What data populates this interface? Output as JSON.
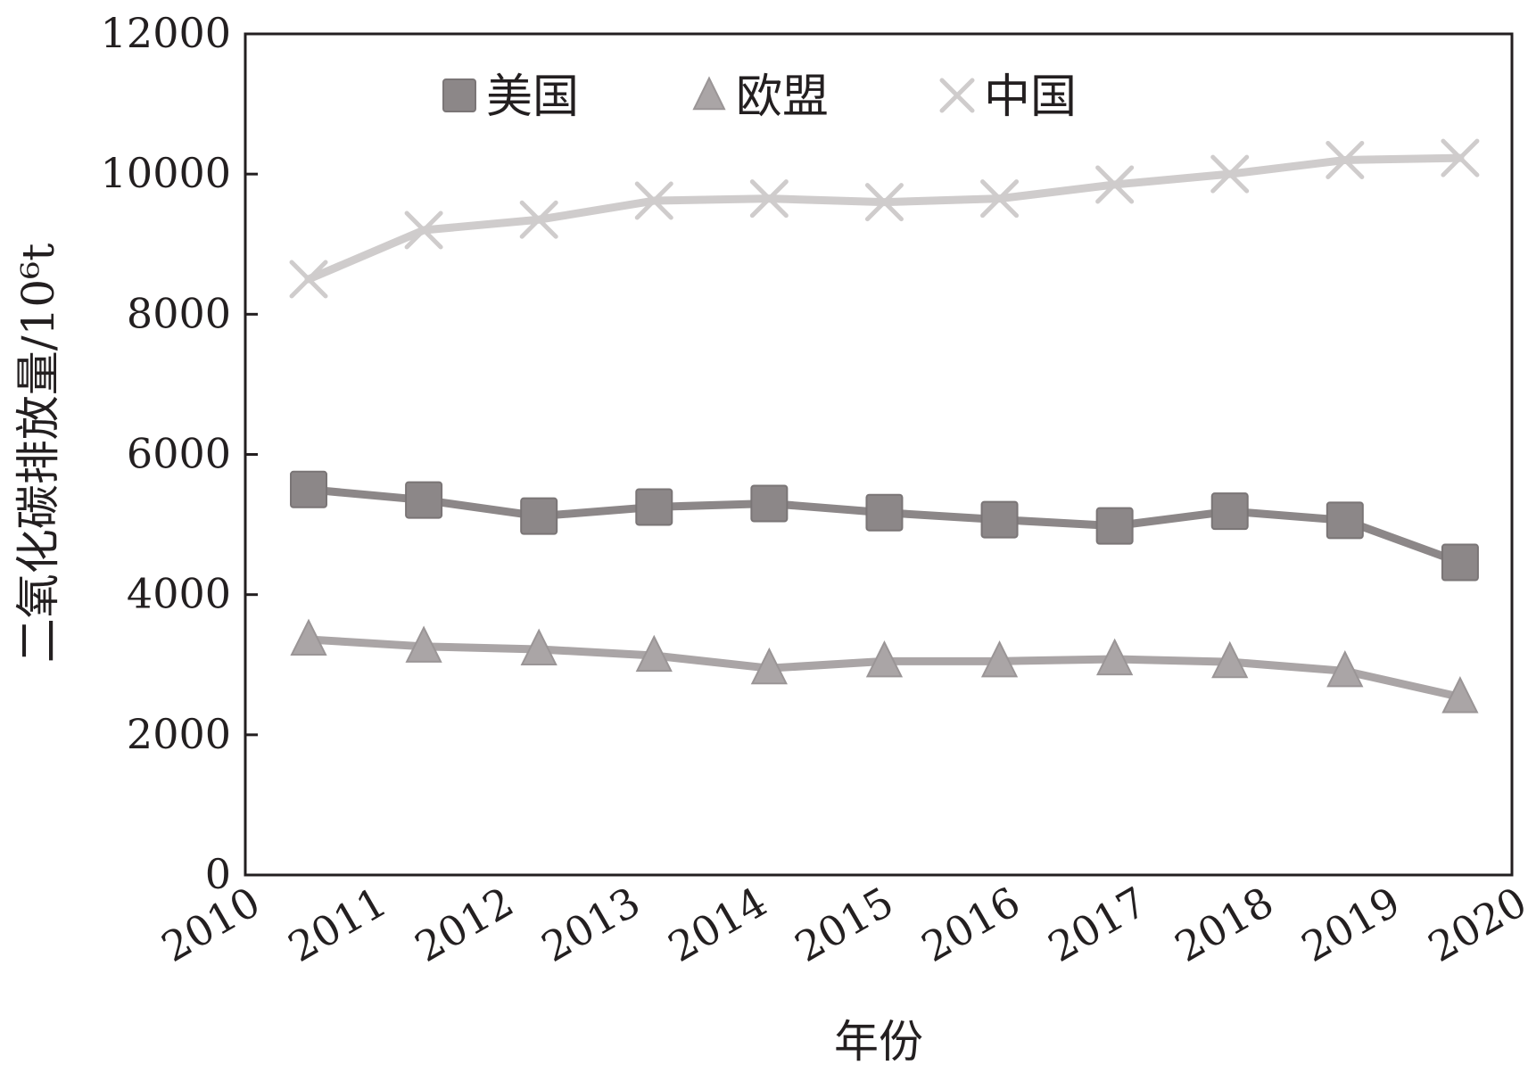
{
  "chart_data": {
    "type": "line",
    "xlabel": "年份",
    "ylabel": "二氧化碳排放量/10⁶t",
    "x_ticks": [
      "2010",
      "2011",
      "2012",
      "2013",
      "2014",
      "2015",
      "2016",
      "2017",
      "2018",
      "2019",
      "2020"
    ],
    "y_ticks": [
      "0",
      "2000",
      "4000",
      "6000",
      "8000",
      "10000",
      "12000"
    ],
    "ylim": [
      0,
      12000
    ],
    "grid": false,
    "legend_position": "top",
    "categories": [
      "2010",
      "2011",
      "2012",
      "2013",
      "2014",
      "2015",
      "2016",
      "2017",
      "2018",
      "2019",
      "2020"
    ],
    "series": [
      {
        "name": "美国",
        "marker": "square",
        "color": "#8c8788",
        "values": [
          5500,
          5350,
          5120,
          5250,
          5300,
          5170,
          5070,
          4980,
          5190,
          5060,
          4460
        ]
      },
      {
        "name": "欧盟",
        "marker": "triangle",
        "color": "#aaa5a6",
        "values": [
          3360,
          3260,
          3220,
          3130,
          2950,
          3050,
          3050,
          3080,
          3040,
          2910,
          2540
        ]
      },
      {
        "name": "中国",
        "marker": "x",
        "color": "#cfcccc",
        "values": [
          8500,
          9200,
          9350,
          9620,
          9650,
          9600,
          9650,
          9850,
          10000,
          10200,
          10230
        ]
      }
    ]
  }
}
